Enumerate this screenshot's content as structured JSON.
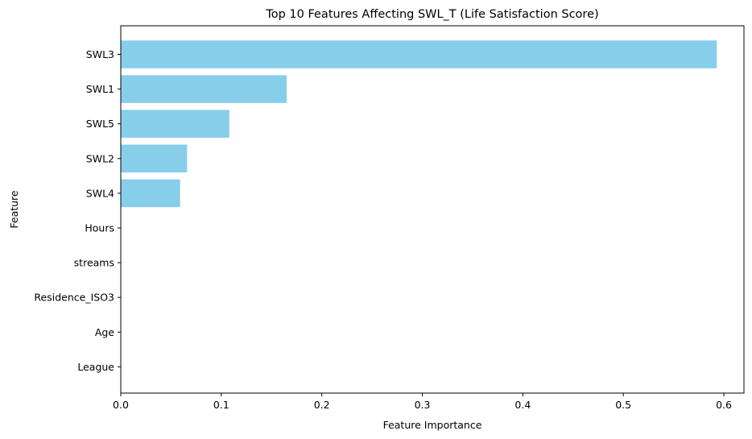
{
  "chart_data": {
    "type": "bar",
    "orientation": "horizontal",
    "title": "Top 10 Features Affecting SWL_T (Life Satisfaction Score)",
    "xlabel": "Feature Importance",
    "ylabel": "Feature",
    "categories": [
      "SWL3",
      "SWL1",
      "SWL5",
      "SWL2",
      "SWL4",
      "Hours",
      "streams",
      "Residence_ISO3",
      "Age",
      "League"
    ],
    "values": [
      0.593,
      0.165,
      0.108,
      0.066,
      0.059,
      0.0,
      0.0,
      0.0,
      0.0,
      0.0
    ],
    "xlim": [
      0,
      0.62
    ],
    "xticks": [
      0.0,
      0.1,
      0.2,
      0.3,
      0.4,
      0.5,
      0.6
    ],
    "xtick_labels": [
      "0.0",
      "0.1",
      "0.2",
      "0.3",
      "0.4",
      "0.5",
      "0.6"
    ],
    "bar_color": "#87CEEB",
    "grid": false,
    "legend": "none"
  }
}
